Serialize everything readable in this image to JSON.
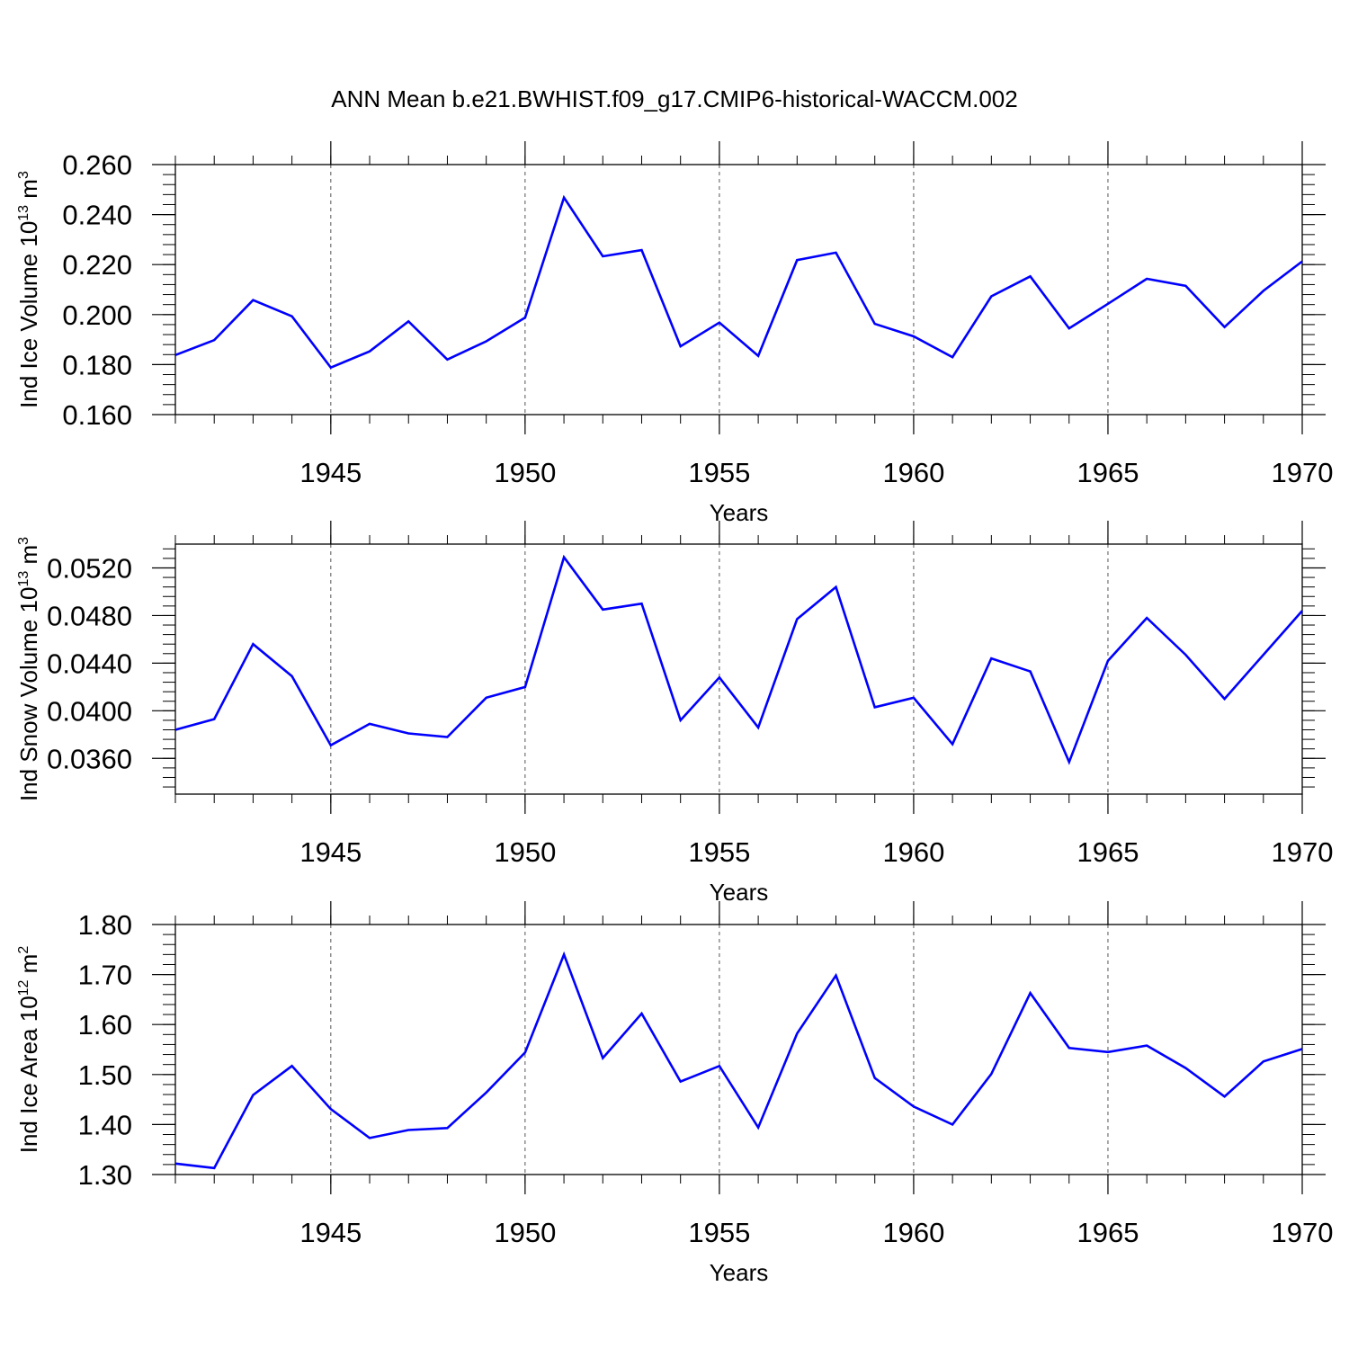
{
  "figure": {
    "title": "ANN Mean b.e21.BWHIST.f09_g17.CMIP6-historical-WACCM.002"
  },
  "colors": {
    "line": "#0000ff",
    "axis": "#000000",
    "grid": "#555555",
    "background": "#ffffff"
  },
  "chart_data": [
    {
      "type": "line",
      "xlabel": "Years",
      "ylabel": "Ind Ice Volume 10",
      "ylabel_exp": "13",
      "ylabel_unit": " m",
      "ylabel_unit_exp": "3",
      "xlim": [
        1941,
        1970
      ],
      "ylim": [
        0.16,
        0.26
      ],
      "xticks": [
        1945,
        1950,
        1955,
        1960,
        1965,
        1970
      ],
      "xtick_labels": [
        "1945",
        "1950",
        "1955",
        "1960",
        "1965",
        "1970"
      ],
      "yticks": [
        0.16,
        0.18,
        0.2,
        0.22,
        0.24,
        0.26
      ],
      "ytick_labels": [
        "0.160",
        "0.180",
        "0.200",
        "0.220",
        "0.240",
        "0.260"
      ],
      "vertical_gridlines": [
        1945,
        1950,
        1955,
        1960,
        1965
      ],
      "x": [
        1941,
        1942,
        1943,
        1944,
        1945,
        1946,
        1947,
        1948,
        1949,
        1950,
        1951,
        1952,
        1953,
        1954,
        1955,
        1956,
        1957,
        1958,
        1959,
        1960,
        1961,
        1962,
        1963,
        1964,
        1965,
        1966,
        1967,
        1968,
        1969,
        1970
      ],
      "series": [
        {
          "values": [
            0.1838,
            0.1898,
            0.2058,
            0.1993,
            0.1788,
            0.1853,
            0.1973,
            0.182,
            0.1893,
            0.1988,
            0.2468,
            0.2233,
            0.2258,
            0.1873,
            0.1968,
            0.1835,
            0.2218,
            0.2248,
            0.1963,
            0.1913,
            0.183,
            0.2073,
            0.2153,
            0.1945,
            0.2043,
            0.2143,
            0.2115,
            0.195,
            0.2095,
            0.2213
          ]
        }
      ]
    },
    {
      "type": "line",
      "xlabel": "Years",
      "ylabel": "Ind Snow Volume 10",
      "ylabel_exp": "13",
      "ylabel_unit": " m",
      "ylabel_unit_exp": "3",
      "xlim": [
        1941,
        1970
      ],
      "ylim": [
        0.033,
        0.054
      ],
      "xticks": [
        1945,
        1950,
        1955,
        1960,
        1965,
        1970
      ],
      "xtick_labels": [
        "1945",
        "1950",
        "1955",
        "1960",
        "1965",
        "1970"
      ],
      "yticks": [
        0.036,
        0.04,
        0.044,
        0.048,
        0.052
      ],
      "ytick_labels": [
        "0.0360",
        "0.0400",
        "0.0440",
        "0.0480",
        "0.0520"
      ],
      "vertical_gridlines": [
        1945,
        1950,
        1955,
        1960,
        1965
      ],
      "x": [
        1941,
        1942,
        1943,
        1944,
        1945,
        1946,
        1947,
        1948,
        1949,
        1950,
        1951,
        1952,
        1953,
        1954,
        1955,
        1956,
        1957,
        1958,
        1959,
        1960,
        1961,
        1962,
        1963,
        1964,
        1965,
        1966,
        1967,
        1968,
        1969,
        1970
      ],
      "series": [
        {
          "values": [
            0.0384,
            0.0393,
            0.0456,
            0.0429,
            0.0371,
            0.0389,
            0.0381,
            0.0378,
            0.0411,
            0.042,
            0.0529,
            0.0485,
            0.049,
            0.0392,
            0.0428,
            0.0386,
            0.0477,
            0.0504,
            0.0403,
            0.0411,
            0.0372,
            0.0444,
            0.0433,
            0.0357,
            0.0442,
            0.0478,
            0.0447,
            0.041,
            0.0447,
            0.0484
          ]
        }
      ]
    },
    {
      "type": "line",
      "xlabel": "Years",
      "ylabel": "Ind Ice Area 10",
      "ylabel_exp": "12",
      "ylabel_unit": " m",
      "ylabel_unit_exp": "2",
      "xlim": [
        1941,
        1970
      ],
      "ylim": [
        1.3,
        1.8
      ],
      "xticks": [
        1945,
        1950,
        1955,
        1960,
        1965,
        1970
      ],
      "xtick_labels": [
        "1945",
        "1950",
        "1955",
        "1960",
        "1965",
        "1970"
      ],
      "yticks": [
        1.3,
        1.4,
        1.5,
        1.6,
        1.7,
        1.8
      ],
      "ytick_labels": [
        "1.30",
        "1.40",
        "1.50",
        "1.60",
        "1.70",
        "1.80"
      ],
      "vertical_gridlines": [
        1945,
        1950,
        1955,
        1960,
        1965
      ],
      "x": [
        1941,
        1942,
        1943,
        1944,
        1945,
        1946,
        1947,
        1948,
        1949,
        1950,
        1951,
        1952,
        1953,
        1954,
        1955,
        1956,
        1957,
        1958,
        1959,
        1960,
        1961,
        1962,
        1963,
        1964,
        1965,
        1966,
        1967,
        1968,
        1969,
        1970
      ],
      "series": [
        {
          "values": [
            1.322,
            1.313,
            1.459,
            1.517,
            1.431,
            1.373,
            1.389,
            1.393,
            1.464,
            1.544,
            1.74,
            1.533,
            1.622,
            1.486,
            1.517,
            1.394,
            1.582,
            1.698,
            1.493,
            1.436,
            1.4,
            1.501,
            1.663,
            1.553,
            1.545,
            1.558,
            1.513,
            1.456,
            1.526,
            1.551
          ]
        }
      ]
    }
  ]
}
